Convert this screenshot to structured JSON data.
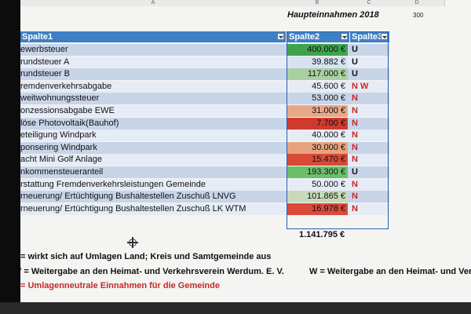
{
  "columns": {
    "a": "A",
    "b": "B",
    "c": "C",
    "d": "D"
  },
  "title": "Haupteinnahmen 2018",
  "side_value": "300",
  "headers": {
    "col1": "Spalte1",
    "col2": "Spalte2",
    "col3": "Spalte3"
  },
  "rows": [
    {
      "name": "ewerbsteuer",
      "value": "400.000 €",
      "flag": "U",
      "color": "#3fa34d",
      "flag_color": "#111111"
    },
    {
      "name": "rundsteuer A",
      "value": "39.882 €",
      "flag": "U",
      "color": "#d7e2f2",
      "flag_color": "#111111"
    },
    {
      "name": "rundsteuer B",
      "value": "117.000 €",
      "flag": "U",
      "color": "#a9d0a0",
      "flag_color": "#111111"
    },
    {
      "name": "remdenverkehrsabgabe",
      "value": "45.600 €",
      "flag": "N W",
      "color": "#e6ecf6",
      "flag_color": "#c62828"
    },
    {
      "name": "weitwohnungssteuer",
      "value": "53.000 €",
      "flag": "N",
      "color": "#c8d4e8",
      "flag_color": "#c62828"
    },
    {
      "name": "onzessionsabgabe EWE",
      "value": "31.000 €",
      "flag": "N",
      "color": "#e7a88a",
      "flag_color": "#c62828"
    },
    {
      "name": "löse Photovoltaik(Bauhof)",
      "value": "7.700 €",
      "flag": "N",
      "color": "#d03a2e",
      "flag_color": "#c62828"
    },
    {
      "name": "eteiligung Windpark",
      "value": "40.000 €",
      "flag": "N",
      "color": "#e6ecf6",
      "flag_color": "#c62828"
    },
    {
      "name": "ponsering Windpark",
      "value": "30.000 €",
      "flag": "N",
      "color": "#e9a27f",
      "flag_color": "#c62828"
    },
    {
      "name": "acht Mini Golf Anlage",
      "value": "15.470 €",
      "flag": "N",
      "color": "#d84a36",
      "flag_color": "#c62828"
    },
    {
      "name": "nkommensteueranteil",
      "value": "193.300 €",
      "flag": "U",
      "color": "#6cbf6a",
      "flag_color": "#111111"
    },
    {
      "name": "rstattung Fremdenverkehrsleistungen Gemeinde",
      "value": "50.000 €",
      "flag": "N",
      "color": "#e6ecf6",
      "flag_color": "#c62828"
    },
    {
      "name": "rneuerung/ Ertüchtigung Bushaltestellen Zuschuß LNVG",
      "value": "101.865 €",
      "flag": "N",
      "color": "#c7d9b8",
      "flag_color": "#c62828"
    },
    {
      "name": "rneuerung/ Ertüchtigung Bushaltestellen Zuschuß LK WTM",
      "value": "16.978 €",
      "flag": "N",
      "color": "#d94a3a",
      "flag_color": "#c62828"
    }
  ],
  "total": "1.141.795 €",
  "notes": {
    "u": "= wirkt sich auf Umlagen Land; Kreis und Samtgemeinde aus",
    "w1": "V =  Weitergabe an den Heimat- und Verkehrsverein Werdum. E. V.",
    "w2": "W =  Weitergabe an den Heimat- und Verkeh",
    "n": "= Umlagenneutrale Einnahmen für die Gemeinde"
  },
  "colors": {
    "header_blue": "#3f7fc4",
    "note_red": "#c62828",
    "selection_border": "#2a5fb0"
  }
}
